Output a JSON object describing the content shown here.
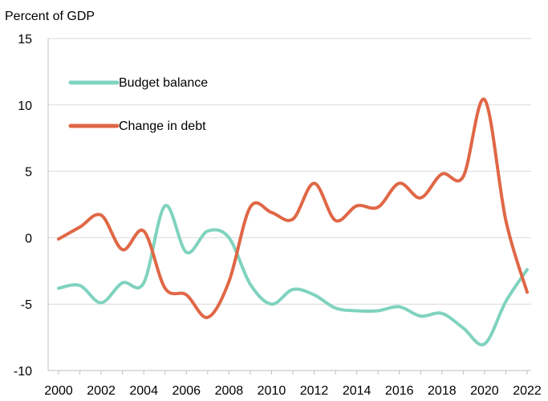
{
  "chart_data": {
    "type": "line",
    "title": "",
    "xlabel": "",
    "ylabel": "Percent of GDP",
    "ylim": [
      -10,
      15
    ],
    "yticks": [
      -10,
      -5,
      0,
      5,
      10,
      15
    ],
    "xlim": [
      2000,
      2022
    ],
    "xticks": [
      2000,
      2002,
      2004,
      2006,
      2008,
      2010,
      2012,
      2014,
      2016,
      2018,
      2020,
      2022
    ],
    "grid": true,
    "legend": "upper-left",
    "series": [
      {
        "name": "Budget balance",
        "color": "#7fd3bf",
        "x": [
          2000,
          2001,
          2002,
          2003,
          2004,
          2005,
          2006,
          2007,
          2008,
          2009,
          2010,
          2011,
          2012,
          2013,
          2014,
          2015,
          2016,
          2017,
          2018,
          2019,
          2020,
          2021,
          2022
        ],
        "values": [
          -3.8,
          -3.6,
          -4.9,
          -3.4,
          -3.4,
          2.4,
          -1.1,
          0.5,
          0.0,
          -3.5,
          -5.0,
          -3.9,
          -4.3,
          -5.3,
          -5.5,
          -5.5,
          -5.2,
          -5.9,
          -5.7,
          -6.8,
          -8.0,
          -4.8,
          -2.4
        ]
      },
      {
        "name": "Change in debt",
        "color": "#e06746",
        "x": [
          2000,
          2001,
          2002,
          2003,
          2004,
          2005,
          2006,
          2007,
          2008,
          2009,
          2010,
          2011,
          2012,
          2013,
          2014,
          2015,
          2016,
          2017,
          2018,
          2019,
          2020,
          2021,
          2022
        ],
        "values": [
          -0.1,
          0.8,
          1.7,
          -0.9,
          0.5,
          -3.8,
          -4.3,
          -6.0,
          -3.3,
          2.3,
          1.9,
          1.4,
          4.1,
          1.3,
          2.4,
          2.3,
          4.1,
          3.0,
          4.8,
          4.6,
          10.4,
          1.3,
          -4.1
        ]
      }
    ]
  }
}
